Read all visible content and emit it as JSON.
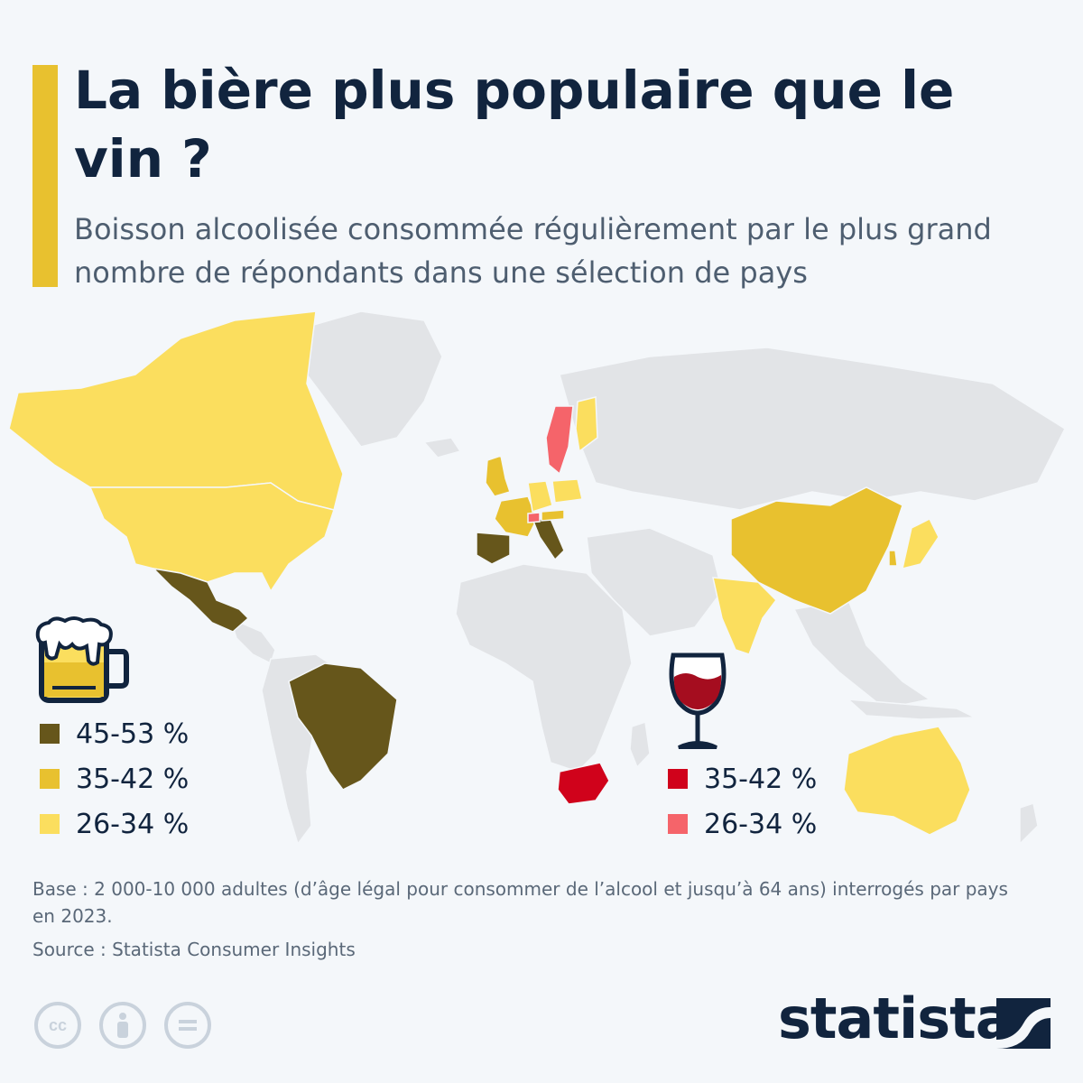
{
  "title": "La bière plus populaire que le vin ?",
  "subtitle": "Boisson alcoolisée consommée régulièrement par le plus grand nombre de répondants dans une sélection de pays",
  "legend": {
    "beer": {
      "icon": "beer-mug-icon",
      "items": [
        {
          "label": "45-53 %",
          "color": "#66561b"
        },
        {
          "label": "35-42 %",
          "color": "#e8c12f"
        },
        {
          "label": "26-34 %",
          "color": "#fbde5e"
        }
      ]
    },
    "wine": {
      "icon": "wine-glass-icon",
      "items": [
        {
          "label": "35-42 %",
          "color": "#d0021b"
        },
        {
          "label": "26-34 %",
          "color": "#f5646a"
        }
      ]
    }
  },
  "map": {
    "base_color": "#e2e4e7",
    "countries": [
      {
        "name": "Canada",
        "drink": "beer",
        "band": "26-34 %"
      },
      {
        "name": "United States",
        "drink": "beer",
        "band": "26-34 %"
      },
      {
        "name": "Mexico",
        "drink": "beer",
        "band": "45-53 %"
      },
      {
        "name": "Brazil",
        "drink": "beer",
        "band": "45-53 %"
      },
      {
        "name": "United Kingdom",
        "drink": "beer",
        "band": "35-42 %"
      },
      {
        "name": "France",
        "drink": "beer",
        "band": "35-42 %"
      },
      {
        "name": "Spain",
        "drink": "beer",
        "band": "45-53 %"
      },
      {
        "name": "Italy",
        "drink": "beer",
        "band": "45-53 %"
      },
      {
        "name": "Germany",
        "drink": "beer",
        "band": "26-34 %"
      },
      {
        "name": "Poland",
        "drink": "beer",
        "band": "26-34 %"
      },
      {
        "name": "Austria",
        "drink": "beer",
        "band": "35-42 %"
      },
      {
        "name": "Switzerland",
        "drink": "wine",
        "band": "26-34 %"
      },
      {
        "name": "Sweden",
        "drink": "wine",
        "band": "26-34 %"
      },
      {
        "name": "Finland",
        "drink": "beer",
        "band": "26-34 %"
      },
      {
        "name": "China",
        "drink": "beer",
        "band": "35-42 %"
      },
      {
        "name": "India",
        "drink": "beer",
        "band": "26-34 %"
      },
      {
        "name": "Japan",
        "drink": "beer",
        "band": "26-34 %"
      },
      {
        "name": "South Korea",
        "drink": "beer",
        "band": "35-42 %"
      },
      {
        "name": "Australia",
        "drink": "beer",
        "band": "26-34 %"
      },
      {
        "name": "South Africa",
        "drink": "wine",
        "band": "35-42 %"
      }
    ]
  },
  "footnote": "Base : 2 000-10 000 adultes (d’âge légal pour consommer de l’alcool et jusqu’à 64 ans) interrogés par pays en 2023.",
  "source": "Source : Statista Consumer Insights",
  "license_icons": [
    "cc-icon",
    "attribution-icon",
    "no-derivatives-icon"
  ],
  "brand": "statista"
}
